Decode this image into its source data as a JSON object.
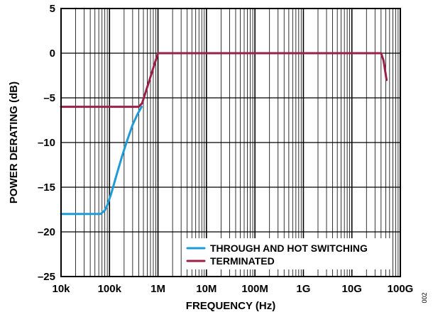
{
  "chart_data": {
    "type": "line",
    "xlabel": "FREQUENCY (Hz)",
    "ylabel": "POWER DERATING (dB)",
    "x_scale": "log",
    "xlim": [
      10000,
      100000000000
    ],
    "ylim": [
      -25,
      5
    ],
    "grid": true,
    "x_ticks": [
      10000,
      100000,
      1000000,
      10000000,
      100000000,
      1000000000,
      10000000000,
      100000000000
    ],
    "x_tick_labels": [
      "10k",
      "100k",
      "1M",
      "10M",
      "100M",
      "1G",
      "10G",
      "100G"
    ],
    "y_ticks": [
      5,
      0,
      -5,
      -10,
      -15,
      -20,
      -25
    ],
    "y_tick_labels": [
      "5",
      "0",
      "–5",
      "–10",
      "–15",
      "–20",
      "–25"
    ],
    "legend_position": "bottom-right",
    "figure_id": "002",
    "series": [
      {
        "name": "THROUGH AND HOT SWITCHING",
        "color": "#1e9bd7",
        "points": [
          [
            10000,
            -18
          ],
          [
            65000,
            -18
          ],
          [
            80000,
            -17.6
          ],
          [
            90000,
            -17
          ],
          [
            110000,
            -15.6
          ],
          [
            140000,
            -13.6
          ],
          [
            180000,
            -11.6
          ],
          [
            230000,
            -9.8
          ],
          [
            300000,
            -8.0
          ],
          [
            380000,
            -6.8
          ],
          [
            460000,
            -6.0
          ]
        ]
      },
      {
        "name": "TERMINATED",
        "color": "#9a2045",
        "points": [
          [
            10000,
            -6
          ],
          [
            400000,
            -6
          ],
          [
            470000,
            -5.6
          ],
          [
            1000000,
            0
          ],
          [
            40000000000,
            0
          ],
          [
            45000000000,
            -0.8
          ],
          [
            52000000000,
            -3.0
          ]
        ]
      }
    ]
  }
}
